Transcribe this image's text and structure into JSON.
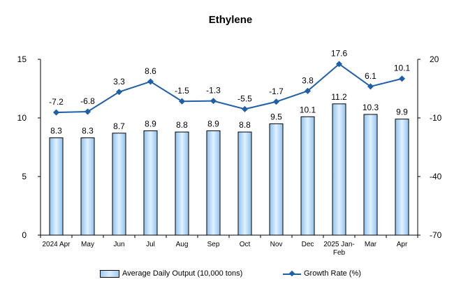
{
  "chart_data": {
    "type": "bar",
    "title": "Ethylene",
    "categories": [
      "2024 Apr",
      "May",
      "Jun",
      "Jul",
      "Aug",
      "Sep",
      "Oct",
      "Nov",
      "Dec",
      "2025 Jan-Feb",
      "Mar",
      "Apr"
    ],
    "series": [
      {
        "name": "Average Daily Output (10,000 tons)",
        "type": "bar",
        "axis": "left",
        "values": [
          8.3,
          8.3,
          8.7,
          8.9,
          8.8,
          8.9,
          8.8,
          9.5,
          10.1,
          11.2,
          10.3,
          9.9
        ],
        "color": "#9ecbf1"
      },
      {
        "name": "Growth Rate (%)",
        "type": "line",
        "axis": "right",
        "values": [
          -7.2,
          -6.8,
          3.3,
          8.6,
          -1.5,
          -1.3,
          -5.5,
          -1.7,
          3.8,
          17.6,
          6.1,
          10.1
        ],
        "color": "#1f5fa8"
      }
    ],
    "y_left": {
      "min": 0,
      "max": 15,
      "ticks": [
        0,
        5,
        10,
        15
      ]
    },
    "y_right": {
      "min": -70,
      "max": 20,
      "ticks": [
        -70,
        -40,
        -10,
        20
      ]
    },
    "grid": false,
    "legend_position": "bottom"
  }
}
